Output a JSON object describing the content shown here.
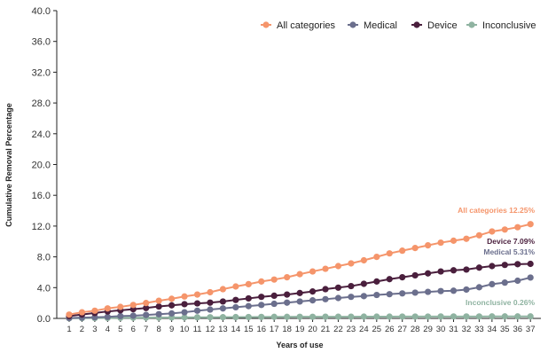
{
  "chart_data": {
    "type": "line",
    "xlabel": "Years of use",
    "ylabel": "Cumulative Removal Percentage",
    "ylim": [
      0,
      40
    ],
    "yticks": [
      "0.0",
      "4.0",
      "8.0",
      "12.0",
      "16.0",
      "20.0",
      "24.0",
      "28.0",
      "32.0",
      "36.0",
      "40.0"
    ],
    "x": [
      1,
      2,
      3,
      4,
      5,
      6,
      7,
      8,
      9,
      10,
      11,
      12,
      13,
      14,
      15,
      16,
      17,
      18,
      19,
      20,
      21,
      22,
      23,
      24,
      25,
      26,
      27,
      28,
      29,
      30,
      31,
      32,
      33,
      34,
      35,
      36,
      37
    ],
    "grid": false,
    "legend_position": "top-right",
    "series": [
      {
        "name": "All categories",
        "color": "#F5956B",
        "end_label": "All categories 12.25%",
        "values": [
          0.5,
          0.8,
          1.0,
          1.3,
          1.5,
          1.75,
          2.0,
          2.3,
          2.55,
          2.85,
          3.1,
          3.4,
          3.8,
          4.15,
          4.45,
          4.8,
          5.05,
          5.35,
          5.75,
          6.1,
          6.45,
          6.8,
          7.15,
          7.55,
          8.0,
          8.45,
          8.8,
          9.15,
          9.5,
          9.85,
          10.1,
          10.35,
          10.8,
          11.3,
          11.55,
          11.85,
          12.25
        ]
      },
      {
        "name": "Medical",
        "color": "#6B6F8D",
        "end_label": "Medical 5.31%",
        "values": [
          0.05,
          0.1,
          0.15,
          0.2,
          0.3,
          0.35,
          0.45,
          0.55,
          0.65,
          0.8,
          1.0,
          1.15,
          1.3,
          1.45,
          1.6,
          1.75,
          1.9,
          2.05,
          2.2,
          2.35,
          2.5,
          2.65,
          2.8,
          2.9,
          3.05,
          3.15,
          3.25,
          3.35,
          3.45,
          3.55,
          3.6,
          3.75,
          4.05,
          4.45,
          4.65,
          4.9,
          5.31
        ]
      },
      {
        "name": "Device",
        "color": "#4A1F3D",
        "end_label": "Device 7.09%",
        "values": [
          0.3,
          0.5,
          0.7,
          0.9,
          1.05,
          1.2,
          1.35,
          1.55,
          1.7,
          1.85,
          1.95,
          2.05,
          2.2,
          2.4,
          2.6,
          2.8,
          2.95,
          3.1,
          3.3,
          3.5,
          3.8,
          4.0,
          4.2,
          4.5,
          4.8,
          5.1,
          5.35,
          5.6,
          5.85,
          6.1,
          6.25,
          6.35,
          6.6,
          6.8,
          6.95,
          7.05,
          7.09
        ]
      },
      {
        "name": "Inconclusive",
        "color": "#8FB3A1",
        "end_label": "Inconclusive 0.26%",
        "values": [
          0.02,
          0.03,
          0.05,
          0.06,
          0.08,
          0.09,
          0.1,
          0.11,
          0.12,
          0.13,
          0.14,
          0.15,
          0.16,
          0.17,
          0.18,
          0.19,
          0.2,
          0.2,
          0.21,
          0.21,
          0.22,
          0.22,
          0.22,
          0.23,
          0.23,
          0.23,
          0.24,
          0.24,
          0.24,
          0.25,
          0.25,
          0.25,
          0.25,
          0.26,
          0.26,
          0.26,
          0.26
        ]
      }
    ]
  }
}
